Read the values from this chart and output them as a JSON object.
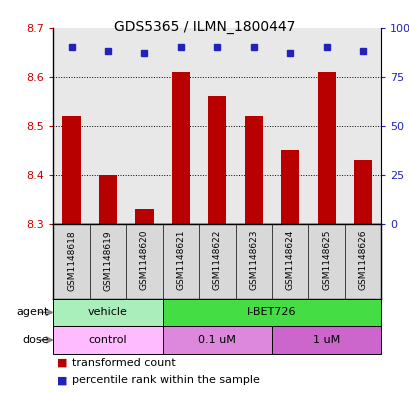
{
  "title": "GDS5365 / ILMN_1800447",
  "samples": [
    "GSM1148618",
    "GSM1148619",
    "GSM1148620",
    "GSM1148621",
    "GSM1148622",
    "GSM1148623",
    "GSM1148624",
    "GSM1148625",
    "GSM1148626"
  ],
  "transformed_counts": [
    8.52,
    8.4,
    8.33,
    8.61,
    8.56,
    8.52,
    8.45,
    8.61,
    8.43
  ],
  "percentile_ranks": [
    90,
    88,
    87,
    90,
    90,
    90,
    87,
    90,
    88
  ],
  "ylim_left": [
    8.3,
    8.7
  ],
  "ylim_right": [
    0,
    100
  ],
  "yticks_left": [
    8.3,
    8.4,
    8.5,
    8.6,
    8.7
  ],
  "yticks_right": [
    0,
    25,
    50,
    75,
    100
  ],
  "bar_color": "#b80000",
  "dot_color": "#2222bb",
  "bar_bottom": 8.3,
  "agent_groups": [
    {
      "label": "vehicle",
      "start": 0,
      "end": 3,
      "color": "#aaeebb"
    },
    {
      "label": "I-BET726",
      "start": 3,
      "end": 9,
      "color": "#44dd44"
    }
  ],
  "dose_groups": [
    {
      "label": "control",
      "start": 0,
      "end": 3,
      "color": "#ffbbff"
    },
    {
      "label": "0.1 uM",
      "start": 3,
      "end": 6,
      "color": "#dd88dd"
    },
    {
      "label": "1 uM",
      "start": 6,
      "end": 9,
      "color": "#cc66cc"
    }
  ],
  "legend_items": [
    {
      "color": "#b80000",
      "label": "transformed count"
    },
    {
      "color": "#2222bb",
      "label": "percentile rank within the sample"
    }
  ],
  "tick_label_color_left": "#cc0000",
  "tick_label_color_right": "#2222bb",
  "sample_box_color": "#d8d8d8",
  "grid_yticks": [
    8.4,
    8.5,
    8.6
  ]
}
